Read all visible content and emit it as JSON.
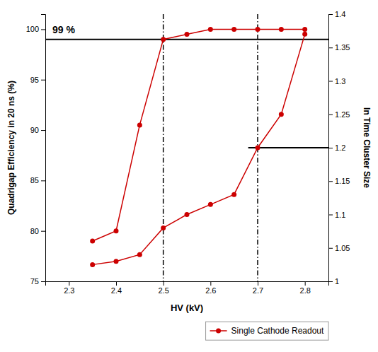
{
  "chart_data": {
    "type": "line",
    "xlabel": "HV (kV)",
    "ylabel": "Quadrigap Efficiency in 20 ns (%)",
    "y2label": "In Time Cluster Size",
    "x": [
      2.35,
      2.4,
      2.45,
      2.5,
      2.55,
      2.6,
      2.65,
      2.7,
      2.75,
      2.8
    ],
    "series": [
      {
        "name": "Single Cathode Readout",
        "color": "#cc0000",
        "marker": "circle",
        "axis": "y",
        "values": [
          79.0,
          80.0,
          90.5,
          99.0,
          99.5,
          100.0,
          100.0,
          100.0,
          100.0,
          100.0
        ]
      },
      {
        "color": "#cc0000",
        "marker": "circle",
        "axis": "y2",
        "values": [
          1.025,
          1.03,
          1.04,
          1.08,
          1.1,
          1.115,
          1.13,
          1.2,
          1.25,
          1.37
        ]
      }
    ],
    "xlim": [
      2.25,
      2.85
    ],
    "xticks": [
      2.3,
      2.4,
      2.5,
      2.6,
      2.7,
      2.8
    ],
    "ylim": [
      75,
      101.5
    ],
    "yticks": [
      75,
      80,
      85,
      90,
      95,
      100
    ],
    "y2lim": [
      1.0,
      1.4
    ],
    "y2ticks": [
      1.0,
      1.05,
      1.1,
      1.15,
      1.2,
      1.25,
      1.3,
      1.35,
      1.4
    ],
    "hlines": [
      {
        "y": 99.0,
        "axis": "y",
        "color": "black"
      },
      {
        "y": 1.2,
        "axis": "y2",
        "x": [
          2.68,
          2.85
        ],
        "color": "black"
      }
    ],
    "vlines": [
      {
        "x": 2.5,
        "color": "black",
        "line_style": "dashdot"
      },
      {
        "x": 2.7,
        "color": "black",
        "line_style": "dashdot"
      }
    ],
    "annotations": [
      {
        "text": "99 %",
        "x": 2.265,
        "y": 99.35,
        "axis": "y"
      }
    ],
    "grid": false,
    "legend": "lower right"
  }
}
